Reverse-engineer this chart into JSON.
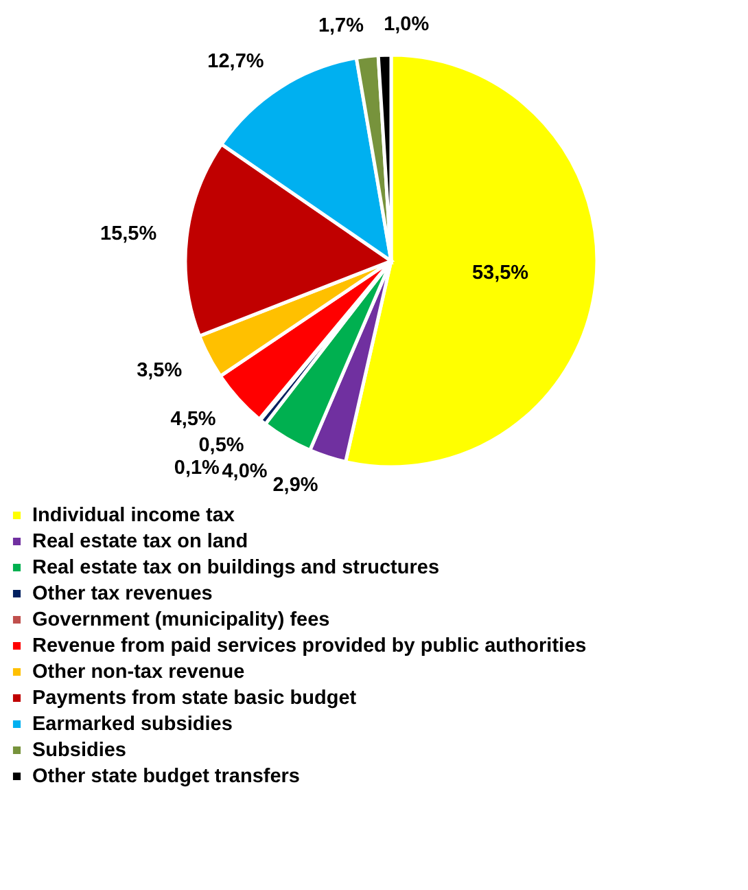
{
  "chart_data": {
    "type": "pie",
    "categories": [
      "Individual income tax",
      "Real estate tax on land",
      "Real estate tax on buildings and structures",
      "Other tax revenues",
      "Government (municipality) fees",
      "Revenue from paid services provided by public authorities",
      "Other non-tax revenue",
      "Payments from state basic budget",
      "Earmarked subsidies",
      "Subsidies",
      "Other state budget transfers"
    ],
    "values": [
      53.5,
      2.9,
      4.0,
      0.5,
      0.1,
      4.5,
      3.5,
      15.5,
      12.7,
      1.7,
      1.0
    ],
    "value_labels": [
      "53,5%",
      "2,9%",
      "4,0%",
      "0,5%",
      "0,1%",
      "4,5%",
      "3,5%",
      "15,5%",
      "12,7%",
      "1,7%",
      "1,0%"
    ],
    "colors": [
      "#ffff00",
      "#7030a0",
      "#00b050",
      "#002060",
      "#c0504d",
      "#ff0000",
      "#ffc000",
      "#c00000",
      "#00b0f0",
      "#77933c",
      "#000000"
    ],
    "legend": "bottom"
  }
}
